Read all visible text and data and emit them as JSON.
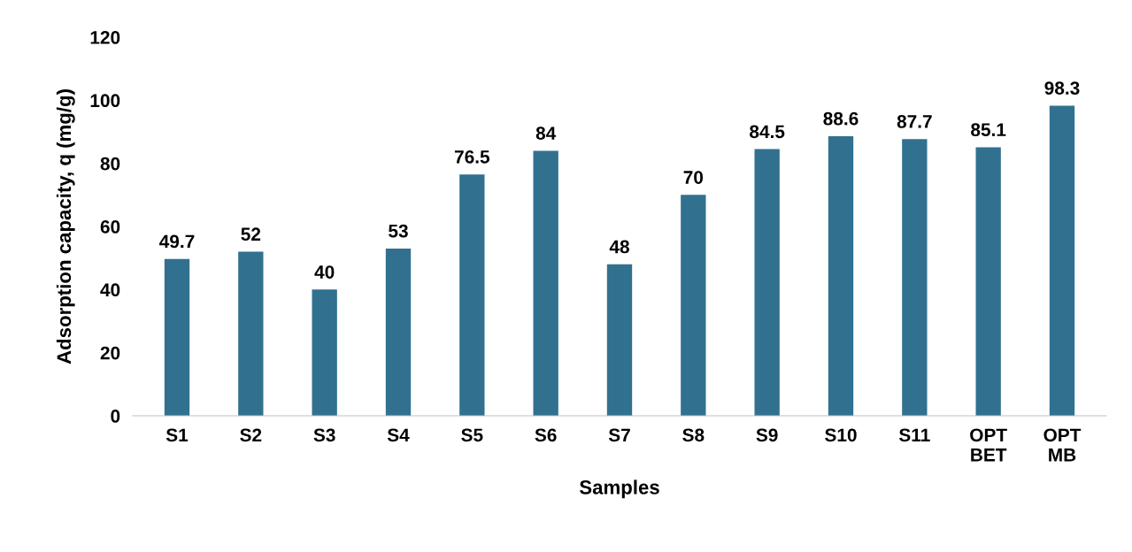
{
  "chart_data": {
    "type": "bar",
    "xlabel": "Samples",
    "ylabel": "Adsorption capacity, q (mg/g)",
    "categories": [
      "S1",
      "S2",
      "S3",
      "S4",
      "S5",
      "S6",
      "S7",
      "S8",
      "S9",
      "S10",
      "S11",
      "OPT\nBET",
      "OPT\nMB"
    ],
    "values": [
      49.7,
      52,
      40,
      53,
      76.5,
      84,
      48,
      70,
      84.5,
      88.6,
      87.7,
      85.1,
      98.3
    ],
    "color": "#31718f",
    "ylim": [
      0,
      120
    ],
    "yticks": [
      0,
      20,
      40,
      60,
      80,
      100,
      120
    ],
    "grid": false,
    "data_labels": true
  }
}
